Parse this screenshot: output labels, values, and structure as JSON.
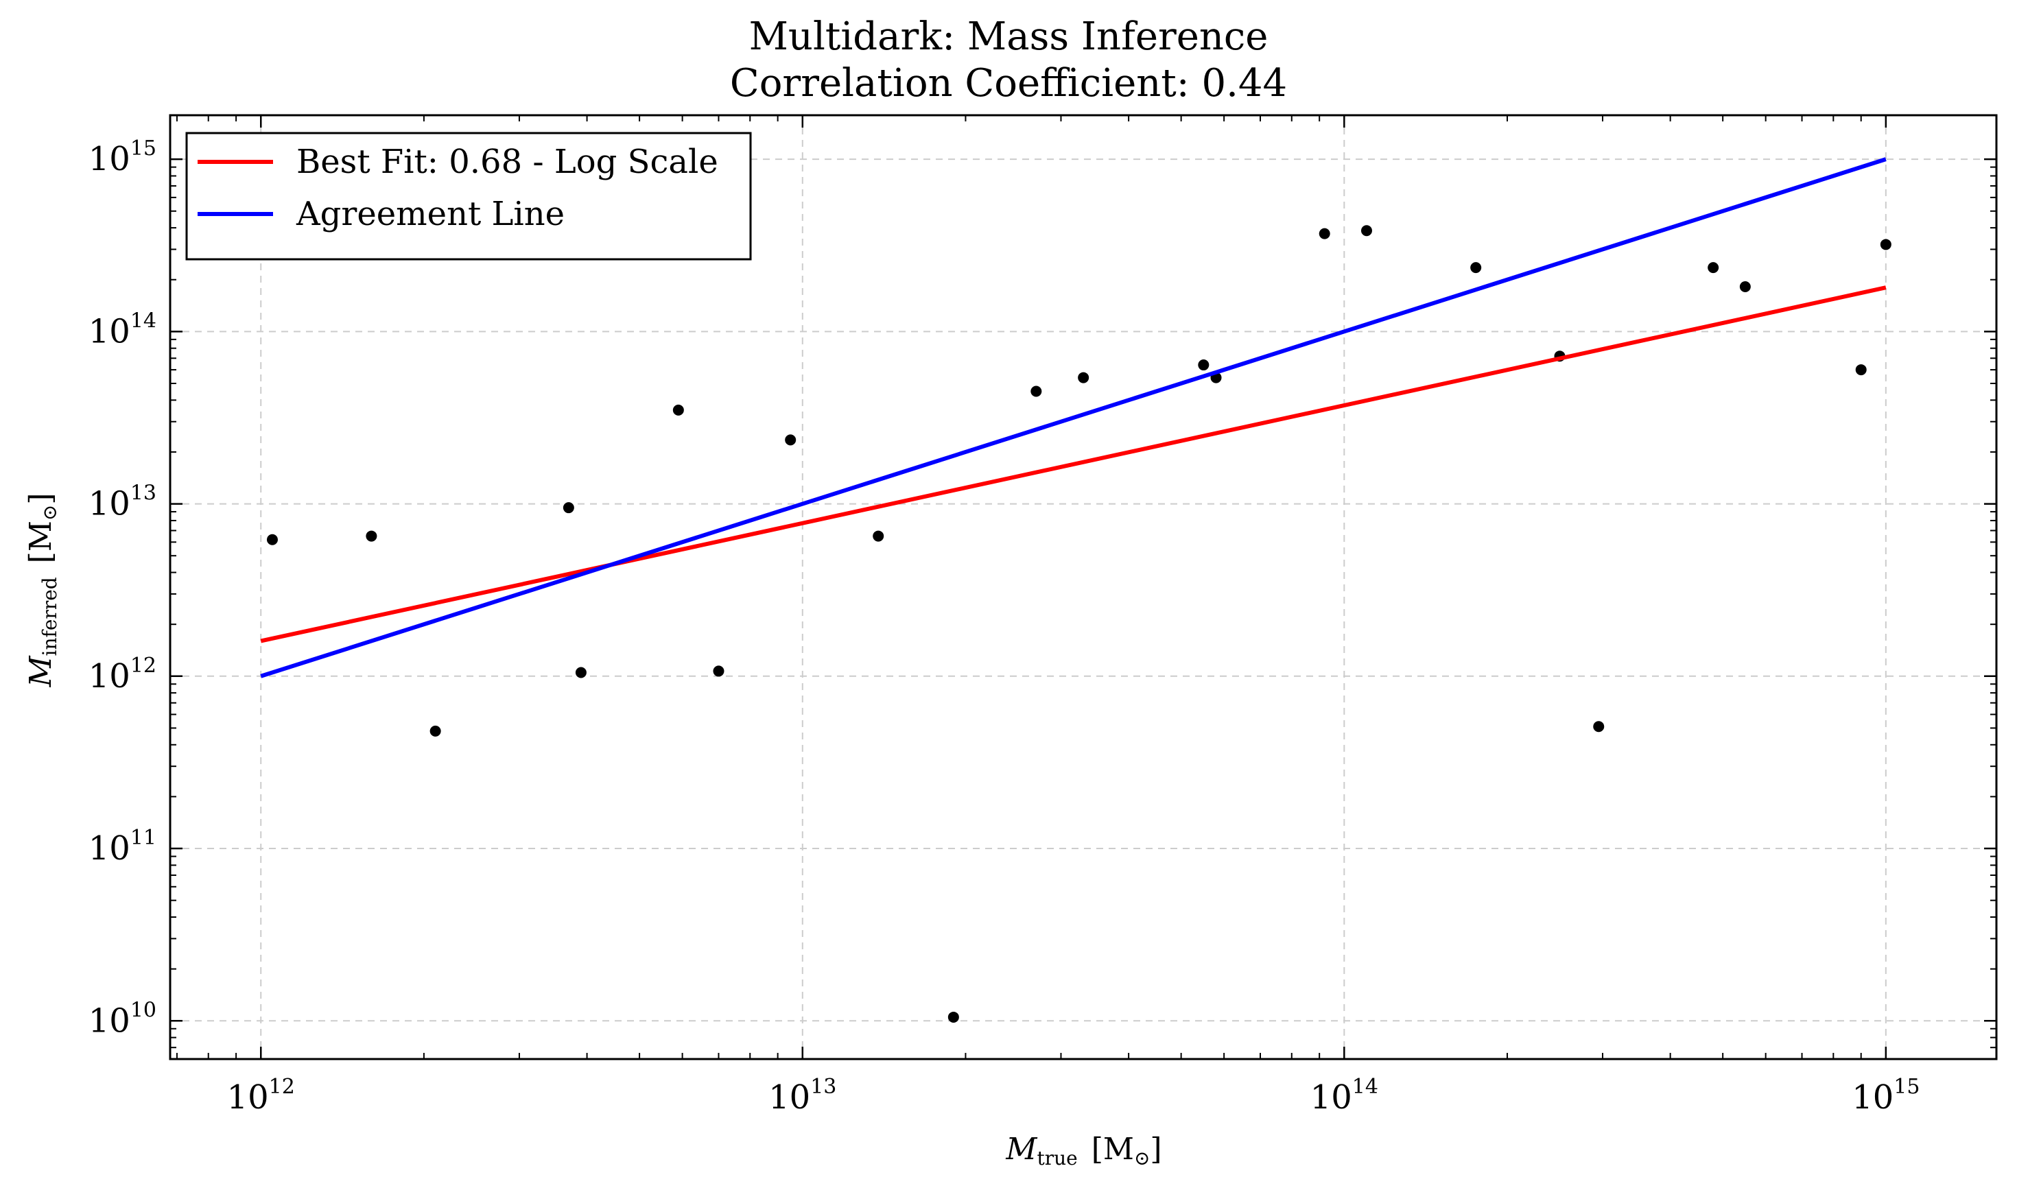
{
  "chart_data": {
    "type": "scatter",
    "title": "Multidark: Mass Inference",
    "subtitle": "Correlation Coefficient: 0.44",
    "xlabel": {
      "symbol": "M",
      "subscript": "true",
      "unit": "[M",
      "unit_subscript": "⊙",
      "unit_close": "]"
    },
    "ylabel": {
      "symbol": "M",
      "subscript": "inferred",
      "unit": "[M",
      "unit_subscript": "⊙",
      "unit_close": "]"
    },
    "xscale": "log",
    "yscale": "log",
    "xlim": [
      680000000000.0,
      1600000000000000.0
    ],
    "ylim": [
      6000000000.0,
      1800000000000000.0
    ],
    "grid": true,
    "legend_position": "top-left",
    "x_ticks": [
      {
        "base": "10",
        "exp": "12",
        "value": 1000000000000.0
      },
      {
        "base": "10",
        "exp": "13",
        "value": 10000000000000.0
      },
      {
        "base": "10",
        "exp": "14",
        "value": 100000000000000.0
      },
      {
        "base": "10",
        "exp": "15",
        "value": 1000000000000000.0
      }
    ],
    "y_ticks": [
      {
        "base": "10",
        "exp": "10",
        "value": 10000000000.0
      },
      {
        "base": "10",
        "exp": "11",
        "value": 100000000000.0
      },
      {
        "base": "10",
        "exp": "12",
        "value": 1000000000000.0
      },
      {
        "base": "10",
        "exp": "13",
        "value": 10000000000000.0
      },
      {
        "base": "10",
        "exp": "14",
        "value": 100000000000000.0
      },
      {
        "base": "10",
        "exp": "15",
        "value": 1000000000000000.0
      }
    ],
    "lines": [
      {
        "name": "Best Fit: 0.68 - Log Scale",
        "color": "#ff0000",
        "x": [
          1000000000000.0,
          1000000000000000.0
        ],
        "y": [
          1600000000000.0,
          180000000000000.0
        ]
      },
      {
        "name": "Agreement Line",
        "color": "#0000ff",
        "x": [
          1000000000000.0,
          1000000000000000.0
        ],
        "y": [
          1000000000000.0,
          1000000000000000.0
        ]
      }
    ],
    "scatter": {
      "color": "#000000",
      "x": [
        1050000000000.0,
        1600000000000.0,
        2100000000000.0,
        3700000000000.0,
        3900000000000.0,
        5900000000000.0,
        7000000000000.0,
        9500000000000.0,
        13800000000000.0,
        19000000000000.0,
        27000000000000.0,
        33000000000000.0,
        55000000000000.0,
        58000000000000.0,
        92000000000000.0,
        110000000000000.0,
        175000000000000.0,
        250000000000000.0,
        295000000000000.0,
        480000000000000.0,
        550000000000000.0,
        900000000000000.0,
        1000000000000000.0
      ],
      "y": [
        6200000000000.0,
        6500000000000.0,
        480000000000.0,
        9500000000000.0,
        1050000000000.0,
        35000000000000.0,
        1070000000000.0,
        23500000000000.0,
        6500000000000.0,
        10500000000.0,
        45000000000000.0,
        54000000000000.0,
        64000000000000.0,
        54000000000000.0,
        370000000000000.0,
        385000000000000.0,
        235000000000000.0,
        72000000000000.0,
        510000000000.0,
        235000000000000.0,
        182000000000000.0,
        60000000000000.0,
        320000000000000.0
      ]
    }
  }
}
